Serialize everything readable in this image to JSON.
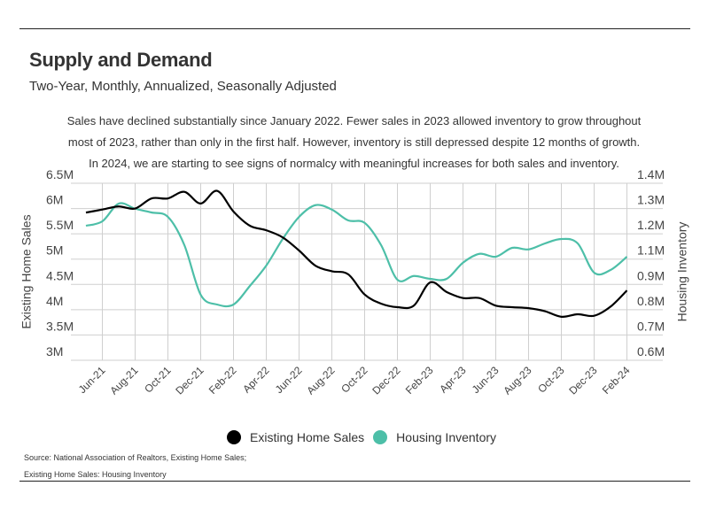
{
  "title": "Supply and Demand",
  "subtitle": "Two-Year, Monthly, Annualized, Seasonally Adjusted",
  "description": [
    "Sales have declined substantially since January 2022. Fewer sales in 2023 allowed inventory to grow throughout",
    "most of 2023, rather than only in the first half. However, inventory is still depressed despite 12 months of growth.",
    "In 2024, we are starting to see signs of normalcy with meaningful increases for both sales and inventory."
  ],
  "source": [
    "Source:  National Association of Realtors, Existing Home Sales;",
    "Existing Home Sales: Housing Inventory"
  ],
  "chart_data": {
    "type": "line",
    "x": [
      "May-21",
      "Jun-21",
      "Jul-21",
      "Aug-21",
      "Sep-21",
      "Oct-21",
      "Nov-21",
      "Dec-21",
      "Jan-22",
      "Feb-22",
      "Mar-22",
      "Apr-22",
      "May-22",
      "Jun-22",
      "Jul-22",
      "Aug-22",
      "Sep-22",
      "Oct-22",
      "Nov-22",
      "Dec-22",
      "Jan-23",
      "Feb-23",
      "Mar-23",
      "Apr-23",
      "May-23",
      "Jun-23",
      "Jul-23",
      "Aug-23",
      "Sep-23",
      "Oct-23",
      "Nov-23",
      "Dec-23",
      "Jan-24",
      "Feb-24"
    ],
    "x_tick_labels": [
      "Jun-21",
      "Aug-21",
      "Oct-21",
      "Dec-21",
      "Feb-22",
      "Apr-22",
      "Jun-22",
      "Aug-22",
      "Oct-22",
      "Dec-22",
      "Feb-23",
      "Apr-23",
      "Jun-23",
      "Aug-23",
      "Oct-23",
      "Dec-23",
      "Feb-24"
    ],
    "ylabel": "Existing Home Sales",
    "y2label": "Housing Inventory",
    "ylim": [
      3,
      6.5
    ],
    "y2lim": [
      0.6,
      1.4
    ],
    "y_tick_labels": [
      "6.5M",
      "6M",
      "5.5M",
      "5M",
      "4.5M",
      "4M",
      "3.5M",
      "3M"
    ],
    "y2_tick_labels": [
      "1.4M",
      "1.3M",
      "1.2M",
      "1.1M",
      "0.9M",
      "0.8M",
      "0.7M",
      "0.6M"
    ],
    "grid": true,
    "legend_position": "bottom",
    "series": [
      {
        "name": "Existing Home Sales",
        "axis": "left",
        "unit": "millions",
        "color": "#000000",
        "values": [
          5.92,
          5.98,
          6.04,
          6.0,
          6.2,
          6.2,
          6.33,
          6.1,
          6.35,
          5.94,
          5.66,
          5.57,
          5.43,
          5.17,
          4.87,
          4.76,
          4.7,
          4.3,
          4.12,
          4.05,
          4.08,
          4.54,
          4.35,
          4.23,
          4.23,
          4.08,
          4.05,
          4.03,
          3.97,
          3.86,
          3.91,
          3.88,
          4.06,
          4.38
        ]
      },
      {
        "name": "Housing Inventory",
        "axis": "right",
        "unit": "millions",
        "color": "#4dbfa8",
        "values": [
          1.208,
          1.228,
          1.308,
          1.285,
          1.268,
          1.248,
          1.121,
          0.896,
          0.852,
          0.852,
          0.936,
          1.028,
          1.148,
          1.248,
          1.301,
          1.281,
          1.232,
          1.221,
          1.121,
          0.964,
          0.981,
          0.968,
          0.968,
          1.041,
          1.081,
          1.068,
          1.108,
          1.101,
          1.128,
          1.148,
          1.128,
          0.996,
          1.008,
          1.068
        ]
      }
    ]
  }
}
